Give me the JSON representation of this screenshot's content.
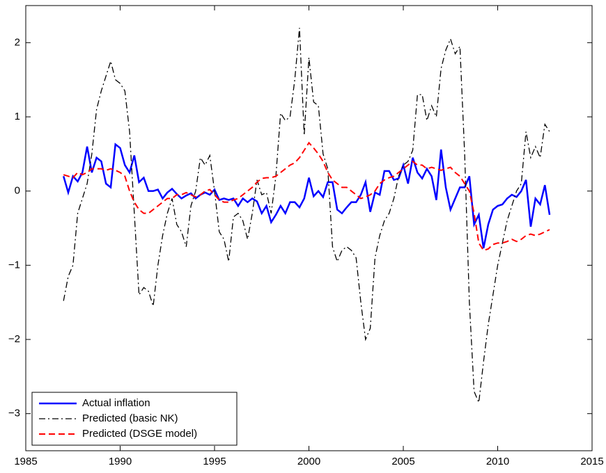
{
  "chart_data": {
    "type": "line",
    "x": [
      1987,
      1987.25,
      1987.5,
      1987.75,
      1988,
      1988.25,
      1988.5,
      1988.75,
      1989,
      1989.25,
      1989.5,
      1989.75,
      1990,
      1990.25,
      1990.5,
      1990.75,
      1991,
      1991.25,
      1991.5,
      1991.75,
      1992,
      1992.25,
      1992.5,
      1992.75,
      1993,
      1993.25,
      1993.5,
      1993.75,
      1994,
      1994.25,
      1994.5,
      1994.75,
      1995,
      1995.25,
      1995.5,
      1995.75,
      1996,
      1996.25,
      1996.5,
      1996.75,
      1997,
      1997.25,
      1997.5,
      1997.75,
      1998,
      1998.25,
      1998.5,
      1998.75,
      1999,
      1999.25,
      1999.5,
      1999.75,
      2000,
      2000.25,
      2000.5,
      2000.75,
      2001,
      2001.25,
      2001.5,
      2001.75,
      2002,
      2002.25,
      2002.5,
      2002.75,
      2003,
      2003.25,
      2003.5,
      2003.75,
      2004,
      2004.25,
      2004.5,
      2004.75,
      2005,
      2005.25,
      2005.5,
      2005.75,
      2006,
      2006.25,
      2006.5,
      2006.75,
      2007,
      2007.25,
      2007.5,
      2007.75,
      2008,
      2008.25,
      2008.5,
      2008.75,
      2009,
      2009.25,
      2009.5,
      2009.75,
      2010,
      2010.25,
      2010.5,
      2010.75,
      2011,
      2011.25,
      2011.5,
      2011.75,
      2012,
      2012.25,
      2012.5,
      2012.75
    ],
    "series": [
      {
        "name": "Actual inflation",
        "color": "#0000ff",
        "dash": "solid",
        "values": [
          0.2,
          -0.02,
          0.2,
          0.13,
          0.25,
          0.6,
          0.25,
          0.45,
          0.4,
          0.1,
          0.05,
          0.63,
          0.58,
          0.35,
          0.25,
          0.48,
          0.12,
          0.18,
          0.0,
          0.0,
          0.02,
          -0.1,
          -0.02,
          0.03,
          -0.04,
          -0.1,
          -0.06,
          -0.03,
          -0.1,
          -0.05,
          -0.02,
          -0.05,
          0.02,
          -0.12,
          -0.1,
          -0.12,
          -0.1,
          -0.2,
          -0.1,
          -0.15,
          -0.1,
          -0.14,
          -0.3,
          -0.2,
          -0.42,
          -0.32,
          -0.2,
          -0.3,
          -0.15,
          -0.15,
          -0.22,
          -0.1,
          0.18,
          -0.07,
          0.0,
          -0.08,
          0.12,
          0.12,
          -0.25,
          -0.3,
          -0.22,
          -0.15,
          -0.15,
          -0.05,
          0.12,
          -0.28,
          -0.02,
          -0.05,
          0.27,
          0.27,
          0.15,
          0.17,
          0.35,
          0.1,
          0.45,
          0.25,
          0.17,
          0.3,
          0.2,
          -0.12,
          0.56,
          0.05,
          -0.25,
          -0.1,
          0.05,
          0.05,
          0.2,
          -0.45,
          -0.32,
          -0.77,
          -0.45,
          -0.25,
          -0.2,
          -0.18,
          -0.1,
          -0.05,
          -0.08,
          0.0,
          0.15,
          -0.48,
          -0.1,
          -0.18,
          0.08,
          -0.32
        ]
      },
      {
        "name": "Predicted (basic NK)",
        "color": "#000000",
        "dash": "dashdot",
        "values": [
          -1.48,
          -1.15,
          -1.0,
          -0.3,
          -0.1,
          0.1,
          0.5,
          1.1,
          1.35,
          1.55,
          1.75,
          1.5,
          1.45,
          1.35,
          0.8,
          -0.3,
          -1.4,
          -1.3,
          -1.35,
          -1.55,
          -1.0,
          -0.6,
          -0.3,
          -0.1,
          -0.45,
          -0.55,
          -0.75,
          -0.2,
          0.0,
          0.45,
          0.35,
          0.48,
          0.0,
          -0.55,
          -0.65,
          -0.95,
          -0.35,
          -0.3,
          -0.4,
          -0.65,
          -0.3,
          0.15,
          -0.05,
          -0.02,
          -0.3,
          0.2,
          1.05,
          0.95,
          1.0,
          1.5,
          2.2,
          0.75,
          1.8,
          1.2,
          1.15,
          0.5,
          0.3,
          -0.75,
          -0.95,
          -0.8,
          -0.75,
          -0.8,
          -0.9,
          -1.5,
          -2.0,
          -1.85,
          -0.9,
          -0.6,
          -0.4,
          -0.3,
          -0.1,
          0.2,
          0.35,
          0.4,
          0.55,
          1.3,
          1.3,
          0.95,
          1.15,
          1.0,
          1.65,
          1.9,
          2.05,
          1.85,
          1.95,
          0.5,
          -1.5,
          -2.7,
          -2.85,
          -2.3,
          -1.8,
          -1.4,
          -1.0,
          -0.7,
          -0.4,
          -0.2,
          0.0,
          0.1,
          0.8,
          0.45,
          0.6,
          0.45,
          0.9,
          0.8
        ]
      },
      {
        "name": "Predicted (DSGE model)",
        "color": "#ff0000",
        "dash": "dashed",
        "values": [
          0.22,
          0.2,
          0.18,
          0.25,
          0.22,
          0.25,
          0.3,
          0.3,
          0.3,
          0.28,
          0.3,
          0.28,
          0.25,
          0.2,
          0.0,
          -0.15,
          -0.25,
          -0.3,
          -0.3,
          -0.25,
          -0.2,
          -0.15,
          -0.1,
          -0.1,
          -0.05,
          -0.05,
          -0.02,
          -0.05,
          -0.08,
          -0.05,
          0.0,
          0.02,
          -0.05,
          -0.12,
          -0.15,
          -0.15,
          -0.12,
          -0.1,
          -0.05,
          0.0,
          0.05,
          0.12,
          0.17,
          0.18,
          0.18,
          0.2,
          0.25,
          0.3,
          0.35,
          0.38,
          0.45,
          0.55,
          0.65,
          0.58,
          0.5,
          0.4,
          0.25,
          0.15,
          0.1,
          0.05,
          0.05,
          0.0,
          -0.05,
          -0.1,
          -0.08,
          -0.05,
          0.0,
          0.1,
          0.15,
          0.18,
          0.2,
          0.25,
          0.3,
          0.35,
          0.4,
          0.35,
          0.35,
          0.3,
          0.32,
          0.3,
          0.28,
          0.3,
          0.32,
          0.25,
          0.2,
          0.1,
          0.0,
          -0.3,
          -0.7,
          -0.8,
          -0.78,
          -0.72,
          -0.7,
          -0.7,
          -0.68,
          -0.65,
          -0.68,
          -0.65,
          -0.6,
          -0.58,
          -0.6,
          -0.58,
          -0.55,
          -0.52
        ]
      }
    ],
    "xlim": [
      1985,
      2015
    ],
    "xticks": [
      1985,
      1990,
      1995,
      2000,
      2005,
      2010,
      2015
    ],
    "ylim": [
      -3.5,
      2.5
    ],
    "yticks": [
      {
        "value": -3,
        "label": "−3"
      },
      {
        "value": -2,
        "label": "−2"
      },
      {
        "value": -1,
        "label": "−1"
      },
      0,
      1,
      2
    ],
    "legend": "lower left"
  }
}
